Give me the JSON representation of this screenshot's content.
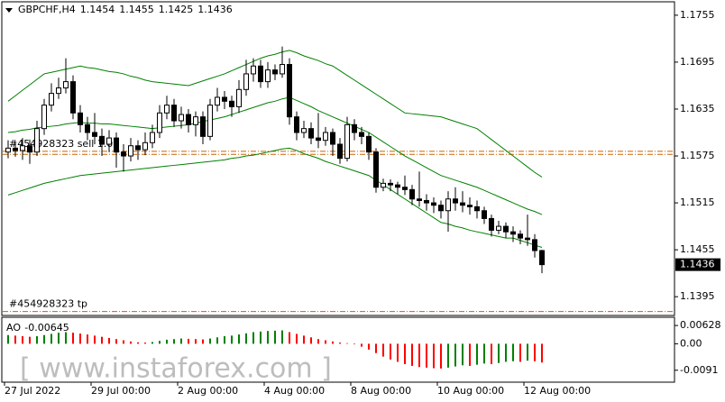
{
  "chart_data": {
    "type": "candlestick",
    "symbol": "GBPCHF,H4",
    "categories": [
      "27 Jul 2022",
      null,
      null,
      null,
      null,
      null,
      null,
      null,
      null,
      null,
      null,
      null,
      "29 Jul 00:00",
      null,
      null,
      null,
      null,
      null,
      null,
      null,
      null,
      null,
      null,
      null,
      "2 Aug 00:00",
      null,
      null,
      null,
      null,
      null,
      null,
      null,
      null,
      null,
      null,
      null,
      "4 Aug 00:00",
      null,
      null,
      null,
      null,
      null,
      null,
      null,
      null,
      null,
      null,
      null,
      "8 Aug 00:00",
      null,
      null,
      null,
      null,
      null,
      null,
      null,
      null,
      null,
      null,
      null,
      "10 Aug 00:00",
      null,
      null,
      null,
      null,
      null,
      null,
      null,
      null,
      null,
      null,
      null,
      "12 Aug 00:00",
      null,
      null
    ],
    "open": [
      1.158,
      1.1585,
      1.1582,
      1.1588,
      1.158,
      1.161,
      1.164,
      1.1655,
      1.1662,
      1.167,
      1.163,
      1.1615,
      1.1605,
      1.16,
      1.159,
      1.1598,
      1.158,
      1.1575,
      1.1588,
      1.1583,
      1.1592,
      1.1605,
      1.163,
      1.164,
      1.162,
      1.1628,
      1.1615,
      1.1625,
      1.16,
      1.164,
      1.165,
      1.1645,
      1.1638,
      1.166,
      1.168,
      1.169,
      1.167,
      1.1685,
      1.168,
      1.1692,
      1.1625,
      1.1605,
      1.161,
      1.1598,
      1.1595,
      1.1605,
      1.159,
      1.1572,
      1.1615,
      1.1605,
      1.16,
      1.158,
      1.1535,
      1.154,
      1.1538,
      1.1535,
      1.1532,
      1.152,
      1.1518,
      1.1515,
      1.1512,
      1.1505,
      1.152,
      1.1515,
      1.1512,
      1.151,
      1.1505,
      1.1495,
      1.148,
      1.1485,
      1.1478,
      1.1475,
      1.147,
      1.1468,
      1.1454
    ],
    "high": [
      1.1595,
      1.1592,
      1.1598,
      1.1596,
      1.162,
      1.1648,
      1.1668,
      1.1675,
      1.17,
      1.1678,
      1.164,
      1.1625,
      1.163,
      1.161,
      1.1608,
      1.1605,
      1.159,
      1.1598,
      1.1595,
      1.1605,
      1.1615,
      1.164,
      1.1652,
      1.1648,
      1.1638,
      1.1635,
      1.1632,
      1.1632,
      1.1648,
      1.1662,
      1.1658,
      1.1652,
      1.1672,
      1.1698,
      1.17,
      1.1698,
      1.1695,
      1.1692,
      1.1715,
      1.17,
      1.1632,
      1.162,
      1.1618,
      1.163,
      1.1612,
      1.161,
      1.1598,
      1.1625,
      1.1622,
      1.1612,
      1.1605,
      1.1585,
      1.1546,
      1.1545,
      1.1542,
      1.155,
      1.1538,
      1.1555,
      1.1526,
      1.1522,
      1.1518,
      1.153,
      1.1535,
      1.153,
      1.1522,
      1.1518,
      1.151,
      1.15,
      1.1492,
      1.149,
      1.1485,
      1.148,
      1.15,
      1.1475,
      1.1455
    ],
    "low": [
      1.1572,
      1.1574,
      1.157,
      1.1565,
      1.1575,
      1.1602,
      1.1632,
      1.1648,
      1.1655,
      1.1622,
      1.1605,
      1.1595,
      1.159,
      1.1575,
      1.158,
      1.156,
      1.1555,
      1.1568,
      1.157,
      1.1576,
      1.1585,
      1.1598,
      1.1622,
      1.1612,
      1.161,
      1.1605,
      1.16,
      1.159,
      1.1595,
      1.1632,
      1.1635,
      1.1625,
      1.163,
      1.1652,
      1.167,
      1.1662,
      1.1662,
      1.1672,
      1.1675,
      1.1615,
      1.1595,
      1.1598,
      1.159,
      1.1585,
      1.1588,
      1.1575,
      1.1565,
      1.1568,
      1.1595,
      1.159,
      1.157,
      1.1528,
      1.153,
      1.153,
      1.1526,
      1.1525,
      1.1512,
      1.151,
      1.1505,
      1.1502,
      1.1495,
      1.1478,
      1.1505,
      1.1503,
      1.15,
      1.1495,
      1.1488,
      1.1472,
      1.1475,
      1.147,
      1.1465,
      1.1462,
      1.146,
      1.1445,
      1.1425
    ],
    "close": [
      1.1585,
      1.1582,
      1.1588,
      1.158,
      1.161,
      1.164,
      1.1655,
      1.1662,
      1.167,
      1.163,
      1.1615,
      1.1605,
      1.16,
      1.159,
      1.1598,
      1.158,
      1.1575,
      1.1588,
      1.1583,
      1.1592,
      1.1605,
      1.163,
      1.164,
      1.162,
      1.1628,
      1.1615,
      1.1625,
      1.16,
      1.164,
      1.165,
      1.1645,
      1.1638,
      1.166,
      1.168,
      1.169,
      1.167,
      1.1685,
      1.168,
      1.1692,
      1.1625,
      1.1605,
      1.161,
      1.1598,
      1.1595,
      1.1605,
      1.159,
      1.1572,
      1.1615,
      1.1605,
      1.16,
      1.158,
      1.1535,
      1.154,
      1.1538,
      1.1535,
      1.1532,
      1.152,
      1.1518,
      1.1515,
      1.1512,
      1.1505,
      1.152,
      1.1515,
      1.1512,
      1.151,
      1.1505,
      1.1495,
      1.148,
      1.1485,
      1.1478,
      1.1475,
      1.147,
      1.1468,
      1.1454,
      1.1436
    ],
    "up_color": "#ffffff",
    "down_color": "#000000",
    "bollinger": {
      "color": "#008000",
      "upper": [
        1.1645,
        1.1652,
        1.1659,
        1.1666,
        1.1673,
        1.168,
        1.1682,
        1.1684,
        1.1686,
        1.1688,
        1.169,
        1.1688,
        1.1687,
        1.1685,
        1.1683,
        1.1682,
        1.168,
        1.1677,
        1.1675,
        1.1672,
        1.167,
        1.1669,
        1.1668,
        1.1667,
        1.1666,
        1.1665,
        1.1668,
        1.1671,
        1.1674,
        1.1677,
        1.168,
        1.1684,
        1.1688,
        1.1692,
        1.1696,
        1.17,
        1.1703,
        1.1705,
        1.1708,
        1.171,
        1.1707,
        1.1703,
        1.17,
        1.1697,
        1.1693,
        1.169,
        1.1684,
        1.1678,
        1.1672,
        1.1666,
        1.166,
        1.1654,
        1.1648,
        1.1642,
        1.1636,
        1.163,
        1.1629,
        1.1628,
        1.1627,
        1.1626,
        1.1625,
        1.1622,
        1.1619,
        1.1616,
        1.1613,
        1.161,
        1.1603,
        1.1596,
        1.1589,
        1.1582,
        1.1575,
        1.1568,
        1.1561,
        1.1554,
        1.1548
      ],
      "middle": [
        1.1605,
        1.1606,
        1.1608,
        1.1609,
        1.1611,
        1.1612,
        1.1613,
        1.1614,
        1.1616,
        1.1617,
        1.1618,
        1.1617,
        1.1617,
        1.1616,
        1.1616,
        1.1615,
        1.1614,
        1.1613,
        1.1612,
        1.1611,
        1.161,
        1.1611,
        1.1612,
        1.1613,
        1.1614,
        1.1615,
        1.1617,
        1.1619,
        1.1621,
        1.1623,
        1.1625,
        1.1628,
        1.1631,
        1.1634,
        1.1637,
        1.164,
        1.1643,
        1.1645,
        1.1648,
        1.165,
        1.1646,
        1.1642,
        1.1638,
        1.1633,
        1.1629,
        1.1625,
        1.1621,
        1.1617,
        1.1613,
        1.1609,
        1.1605,
        1.1599,
        1.1593,
        1.1587,
        1.1581,
        1.1575,
        1.157,
        1.1565,
        1.156,
        1.1555,
        1.155,
        1.1547,
        1.1544,
        1.1541,
        1.1538,
        1.1535,
        1.1531,
        1.1527,
        1.1523,
        1.1519,
        1.1515,
        1.1511,
        1.1507,
        1.1504,
        1.15
      ],
      "lower": [
        1.1525,
        1.1528,
        1.1531,
        1.1534,
        1.1537,
        1.154,
        1.1542,
        1.1544,
        1.1546,
        1.1548,
        1.155,
        1.1551,
        1.1552,
        1.1553,
        1.1554,
        1.1555,
        1.1556,
        1.1557,
        1.1558,
        1.1559,
        1.156,
        1.1561,
        1.1562,
        1.1563,
        1.1564,
        1.1565,
        1.1566,
        1.1567,
        1.1568,
        1.1569,
        1.157,
        1.1572,
        1.1573,
        1.1575,
        1.1576,
        1.1578,
        1.158,
        1.1582,
        1.1584,
        1.1585,
        1.1582,
        1.1578,
        1.1575,
        1.1572,
        1.1568,
        1.1565,
        1.1562,
        1.1559,
        1.1556,
        1.1553,
        1.155,
        1.1544,
        1.1538,
        1.1532,
        1.1526,
        1.152,
        1.1514,
        1.1508,
        1.1502,
        1.1496,
        1.149,
        1.1488,
        1.1485,
        1.1483,
        1.148,
        1.1478,
        1.1476,
        1.1474,
        1.1472,
        1.147,
        1.147,
        1.1467,
        1.1464,
        1.1461,
        1.1458
      ]
    },
    "ylim": [
      1.1371,
      1.1771
    ],
    "yticks": [
      1.1755,
      1.1695,
      1.1635,
      1.1575,
      1.1515,
      1.1455,
      1.1395
    ],
    "levels": [
      {
        "label": "#454928323 sell 1.00",
        "value": 1.1581,
        "color": "#c86400"
      },
      {
        "label": null,
        "value": 1.1577,
        "color": "#c86400"
      },
      {
        "label": "#454928323 tp",
        "value": 1.1376,
        "color": "#e05020"
      }
    ],
    "ao": {
      "name": "AO",
      "values": [
        0.003,
        0.0028,
        0.0026,
        0.0024,
        0.0026,
        0.003,
        0.0034,
        0.0038,
        0.004,
        0.0038,
        0.0035,
        0.0032,
        0.0028,
        0.0024,
        0.002,
        0.0016,
        0.0012,
        0.0008,
        0.0005,
        0.0004,
        0.0006,
        0.001,
        0.0014,
        0.0016,
        0.0018,
        0.0017,
        0.0016,
        0.0015,
        0.0018,
        0.0022,
        0.0026,
        0.0028,
        0.0032,
        0.0036,
        0.004,
        0.0042,
        0.0044,
        0.0045,
        0.0046,
        0.004,
        0.0034,
        0.0028,
        0.0022,
        0.0016,
        0.0012,
        0.0008,
        0.0004,
        0.0002,
        -0.0002,
        -0.001,
        -0.002,
        -0.0032,
        -0.0044,
        -0.0054,
        -0.0062,
        -0.007,
        -0.0076,
        -0.008,
        -0.0082,
        -0.0084,
        -0.0085,
        -0.0082,
        -0.0078,
        -0.0074,
        -0.0076,
        -0.0072,
        -0.0068,
        -0.007,
        -0.0066,
        -0.0062,
        -0.006,
        -0.0062,
        -0.0058,
        -0.006,
        -0.00645
      ],
      "ylim": [
        -0.0132,
        0.0088
      ],
      "yticks": [
        0.00628,
        {
          "value": 0,
          "label": "0.00"
        },
        -0.0091
      ],
      "up_color": "#008000",
      "down_color": "#ff0000"
    },
    "watermark": "[ www.instaforex.com ]"
  }
}
